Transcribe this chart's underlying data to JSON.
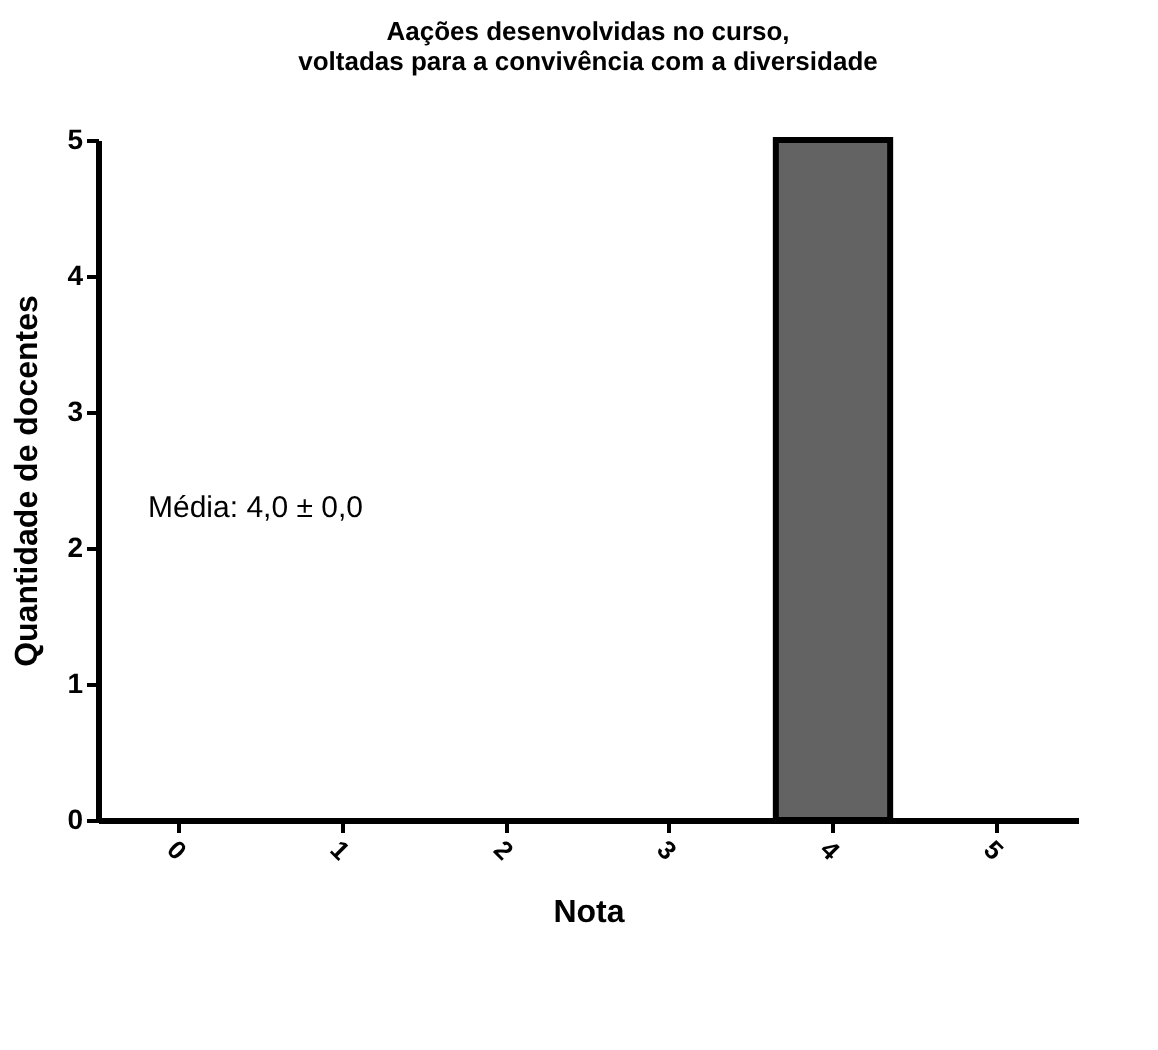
{
  "chart_data": {
    "type": "bar",
    "title": "Aações desenvolvidas no curso, voltadas para a convivência com a diversidade",
    "xlabel": "Nota",
    "ylabel": "Quantidade de docentes",
    "categories": [
      "0",
      "1",
      "2",
      "3",
      "4",
      "5"
    ],
    "values": [
      0,
      0,
      0,
      0,
      5,
      0
    ],
    "color": "#636363",
    "ylim": [
      0,
      5
    ],
    "yticks": [
      0,
      1,
      2,
      3,
      4,
      5
    ],
    "grid": false,
    "annotations": [
      "Média: 4,0 ± 0,0"
    ]
  }
}
